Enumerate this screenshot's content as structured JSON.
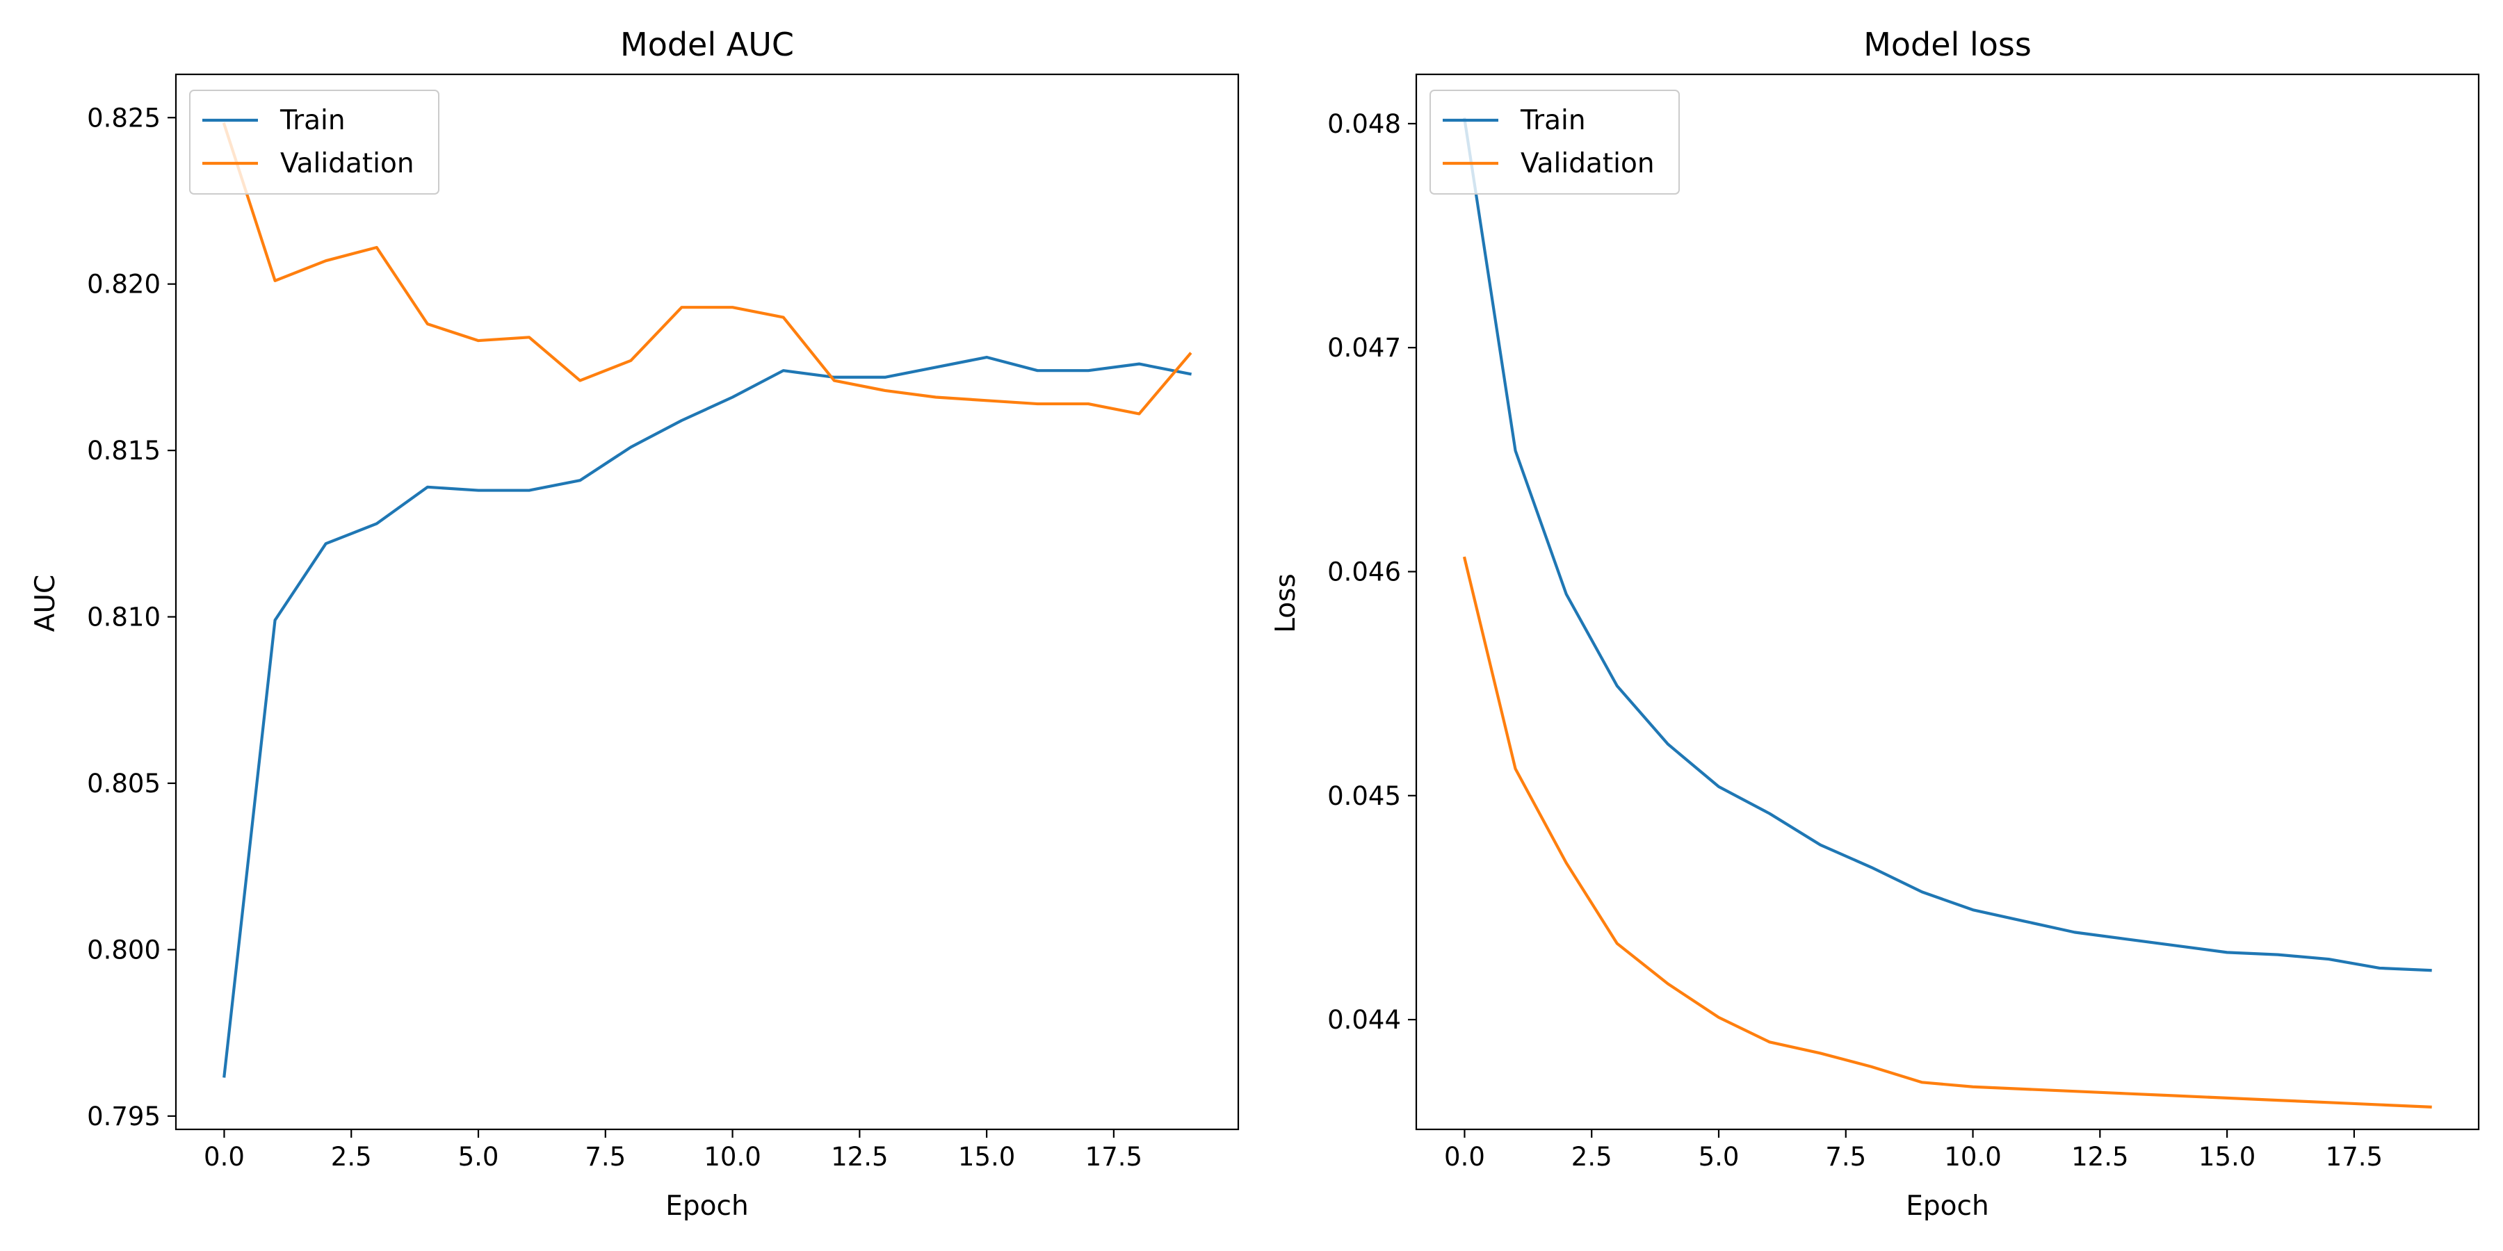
{
  "chart_data": [
    {
      "type": "line",
      "title": "Model AUC",
      "xlabel": "Epoch",
      "ylabel": "AUC",
      "xlim": [
        -0.95,
        19.95
      ],
      "ylim": [
        0.7946,
        0.8263
      ],
      "xticks": [
        0.0,
        2.5,
        5.0,
        7.5,
        10.0,
        12.5,
        15.0,
        17.5
      ],
      "xtick_labels": [
        "0.0",
        "2.5",
        "5.0",
        "7.5",
        "10.0",
        "12.5",
        "15.0",
        "17.5"
      ],
      "yticks": [
        0.795,
        0.8,
        0.805,
        0.81,
        0.815,
        0.82,
        0.825
      ],
      "ytick_labels": [
        "0.795",
        "0.800",
        "0.805",
        "0.810",
        "0.815",
        "0.820",
        "0.825"
      ],
      "grid": false,
      "legend": "upper-left",
      "x": [
        0,
        1,
        2,
        3,
        4,
        5,
        6,
        7,
        8,
        9,
        10,
        11,
        12,
        13,
        14,
        15,
        16,
        17,
        18,
        19
      ],
      "series": [
        {
          "name": "Train",
          "color": "#1f77b4",
          "values": [
            0.7962,
            0.8099,
            0.8122,
            0.8128,
            0.8139,
            0.8138,
            0.8138,
            0.8141,
            0.8151,
            0.8159,
            0.8166,
            0.8174,
            0.8172,
            0.8172,
            0.8175,
            0.8178,
            0.8174,
            0.8174,
            0.8176,
            0.8173
          ]
        },
        {
          "name": "Validation",
          "color": "#ff7f0e",
          "values": [
            0.8248,
            0.8201,
            0.8207,
            0.8211,
            0.8188,
            0.8183,
            0.8184,
            0.8171,
            0.8177,
            0.8193,
            0.8193,
            0.819,
            0.8171,
            0.8168,
            0.8166,
            0.8165,
            0.8164,
            0.8164,
            0.8161,
            0.8179
          ]
        }
      ]
    },
    {
      "type": "line",
      "title": "Model loss",
      "xlabel": "Epoch",
      "ylabel": "Loss",
      "xlim": [
        -0.95,
        19.95
      ],
      "ylim": [
        0.04351,
        0.04822
      ],
      "xticks": [
        0.0,
        2.5,
        5.0,
        7.5,
        10.0,
        12.5,
        15.0,
        17.5
      ],
      "xtick_labels": [
        "0.0",
        "2.5",
        "5.0",
        "7.5",
        "10.0",
        "12.5",
        "15.0",
        "17.5"
      ],
      "yticks": [
        0.044,
        0.045,
        0.046,
        0.047,
        0.048
      ],
      "ytick_labels": [
        "0.044",
        "0.045",
        "0.046",
        "0.047",
        "0.048"
      ],
      "grid": false,
      "legend": "upper-left",
      "x": [
        0,
        1,
        2,
        3,
        4,
        5,
        6,
        7,
        8,
        9,
        10,
        11,
        12,
        13,
        14,
        15,
        16,
        17,
        18,
        19
      ],
      "series": [
        {
          "name": "Train",
          "color": "#1f77b4",
          "values": [
            0.04802,
            0.04654,
            0.0459,
            0.04549,
            0.04523,
            0.04504,
            0.04492,
            0.04478,
            0.04468,
            0.04457,
            0.04449,
            0.04444,
            0.04439,
            0.04436,
            0.04433,
            0.0443,
            0.04429,
            0.04427,
            0.04423,
            0.04422
          ]
        },
        {
          "name": "Validation",
          "color": "#ff7f0e",
          "values": [
            0.04606,
            0.04512,
            0.0447,
            0.04434,
            0.04416,
            0.04401,
            0.0439,
            0.04385,
            0.04379,
            0.04372,
            0.0437,
            0.04369,
            0.04368,
            0.04367,
            0.04366,
            0.04365,
            0.04364,
            0.04363,
            0.04362,
            0.04361
          ]
        }
      ]
    }
  ]
}
